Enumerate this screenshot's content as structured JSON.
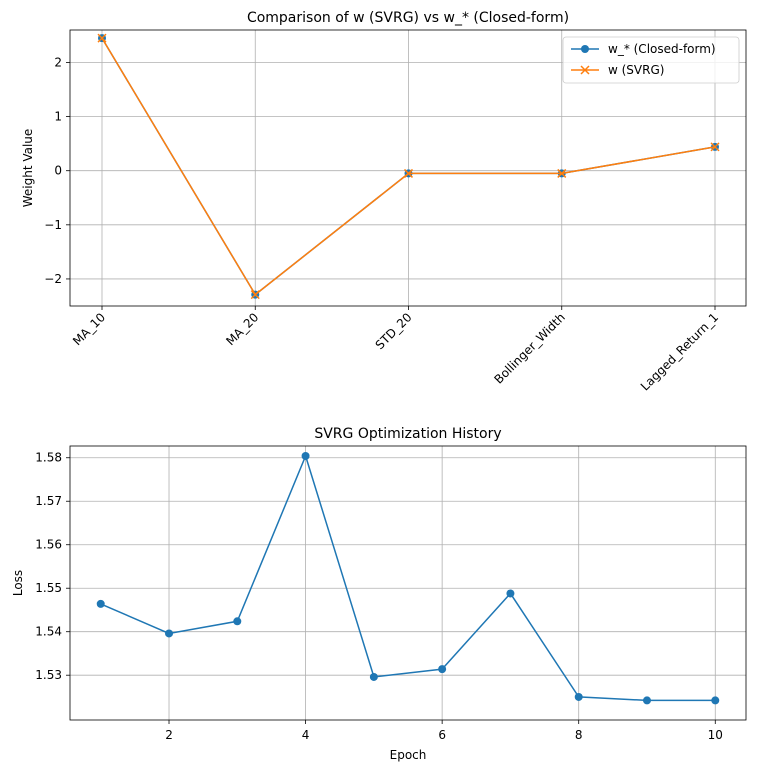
{
  "chart_data": [
    {
      "type": "line",
      "title": "Comparison of w (SVRG) vs w_* (Closed-form)",
      "xlabel": "",
      "ylabel": "Weight Value",
      "categories": [
        "MA_10",
        "MA_20",
        "STD_20",
        "Bollinger_Width",
        "Lagged_Return_1"
      ],
      "ylim": [
        -2.5,
        2.6
      ],
      "yticks": [
        -2,
        -1,
        0,
        1,
        2
      ],
      "ytick_labels": [
        "−2",
        "−1",
        "0",
        "1",
        "2"
      ],
      "grid": true,
      "legend_position": "top-right",
      "series": [
        {
          "name": "w_* (Closed-form)",
          "marker": "circle",
          "color": "#1f77b4",
          "values": [
            2.45,
            -2.29,
            -0.05,
            -0.05,
            0.44
          ]
        },
        {
          "name": "w (SVRG)",
          "marker": "x",
          "color": "#ff7f0e",
          "values": [
            2.45,
            -2.29,
            -0.05,
            -0.05,
            0.44
          ]
        }
      ]
    },
    {
      "type": "line",
      "title": "SVRG Optimization History",
      "xlabel": "Epoch",
      "ylabel": "Loss",
      "xlim": [
        0.55,
        10.45
      ],
      "ylim": [
        1.5197,
        1.5827
      ],
      "xticks": [
        2,
        4,
        6,
        8,
        10
      ],
      "xtick_labels": [
        "2",
        "4",
        "6",
        "8",
        "10"
      ],
      "yticks": [
        1.53,
        1.54,
        1.55,
        1.56,
        1.57,
        1.58
      ],
      "ytick_labels": [
        "1.53",
        "1.54",
        "1.55",
        "1.56",
        "1.57",
        "1.58"
      ],
      "grid": true,
      "series": [
        {
          "marker": "circle",
          "color": "#1f77b4",
          "x": [
            1,
            2,
            3,
            4,
            5,
            6,
            7,
            8,
            9,
            10
          ],
          "values": [
            1.5464,
            1.5396,
            1.5424,
            1.5804,
            1.5296,
            1.5314,
            1.5488,
            1.525,
            1.5242,
            1.5242
          ]
        }
      ]
    }
  ]
}
